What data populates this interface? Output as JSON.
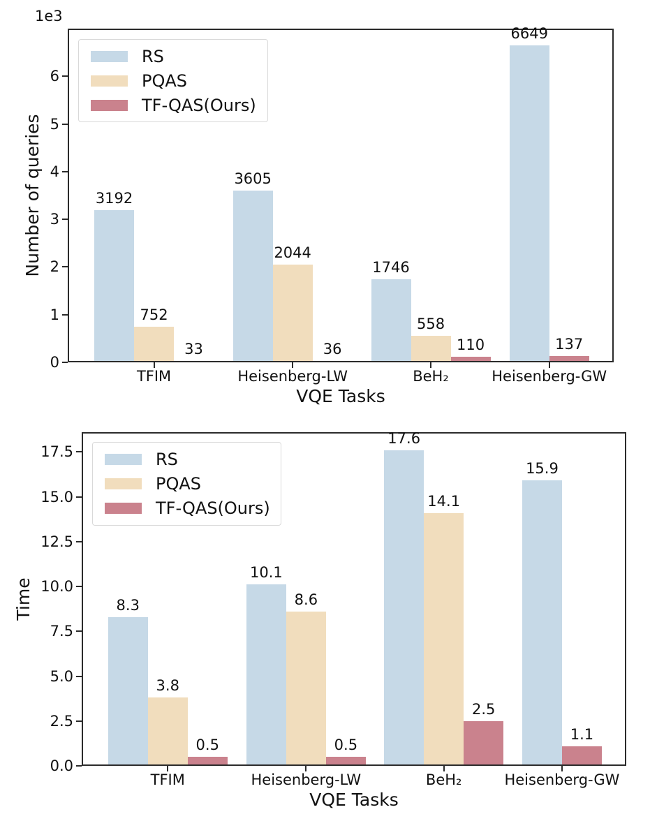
{
  "chart_data": [
    {
      "type": "bar",
      "name": "number-of-queries-by-vqe-task",
      "title": "",
      "xlabel": "VQE Tasks",
      "ylabel": "Number of queries",
      "y_offset_label": "1e3",
      "categories": [
        "TFIM",
        "Heisenberg-LW",
        "BeH₂",
        "Heisenberg-GW"
      ],
      "series": [
        {
          "name": "RS",
          "color": "#c6d9e7",
          "values": [
            3192,
            3605,
            1746,
            6649
          ],
          "labels": [
            "3192",
            "3605",
            "1746",
            "6649"
          ]
        },
        {
          "name": "PQAS",
          "color": "#f1ddbd",
          "values": [
            752,
            2044,
            558,
            null
          ],
          "labels": [
            "752",
            "2044",
            "558",
            null
          ]
        },
        {
          "name": "TF-QAS(Ours)",
          "color": "#ca828d",
          "values": [
            33,
            36,
            110,
            137
          ],
          "labels": [
            "33",
            "36",
            "110",
            "137"
          ]
        }
      ],
      "ylim": [
        0,
        7000
      ],
      "yticks": [
        {
          "v": 0,
          "label": "0"
        },
        {
          "v": 1000,
          "label": "1"
        },
        {
          "v": 2000,
          "label": "2"
        },
        {
          "v": 3000,
          "label": "3"
        },
        {
          "v": 4000,
          "label": "4"
        },
        {
          "v": 5000,
          "label": "5"
        },
        {
          "v": 6000,
          "label": "6"
        }
      ],
      "legend": {
        "position": "upper-left",
        "entries": [
          "RS",
          "PQAS",
          "TF-QAS(Ours)"
        ]
      },
      "grid": false
    },
    {
      "type": "bar",
      "name": "time-by-vqe-task",
      "title": "",
      "xlabel": "VQE Tasks",
      "ylabel": "Time",
      "y_offset_label": "",
      "categories": [
        "TFIM",
        "Heisenberg-LW",
        "BeH₂",
        "Heisenberg-GW"
      ],
      "series": [
        {
          "name": "RS",
          "color": "#c6d9e7",
          "values": [
            8.3,
            10.1,
            17.6,
            15.9
          ],
          "labels": [
            "8.3",
            "10.1",
            "17.6",
            "15.9"
          ]
        },
        {
          "name": "PQAS",
          "color": "#f1ddbd",
          "values": [
            3.8,
            8.6,
            14.1,
            null
          ],
          "labels": [
            "3.8",
            "8.6",
            "14.1",
            null
          ]
        },
        {
          "name": "TF-QAS(Ours)",
          "color": "#ca828d",
          "values": [
            0.5,
            0.5,
            2.5,
            1.1
          ],
          "labels": [
            "0.5",
            "0.5",
            "2.5",
            "1.1"
          ]
        }
      ],
      "ylim": [
        0,
        18.6
      ],
      "yticks": [
        {
          "v": 0,
          "label": "0.0"
        },
        {
          "v": 2.5,
          "label": "2.5"
        },
        {
          "v": 5,
          "label": "5.0"
        },
        {
          "v": 7.5,
          "label": "7.5"
        },
        {
          "v": 10,
          "label": "10.0"
        },
        {
          "v": 12.5,
          "label": "12.5"
        },
        {
          "v": 15,
          "label": "15.0"
        },
        {
          "v": 17.5,
          "label": "17.5"
        }
      ],
      "legend": {
        "position": "upper-left",
        "entries": [
          "RS",
          "PQAS",
          "TF-QAS(Ours)"
        ]
      },
      "grid": false
    }
  ],
  "colors": {
    "spine": "#2b2b2b",
    "text": "#111111",
    "background": "#ffffff"
  }
}
